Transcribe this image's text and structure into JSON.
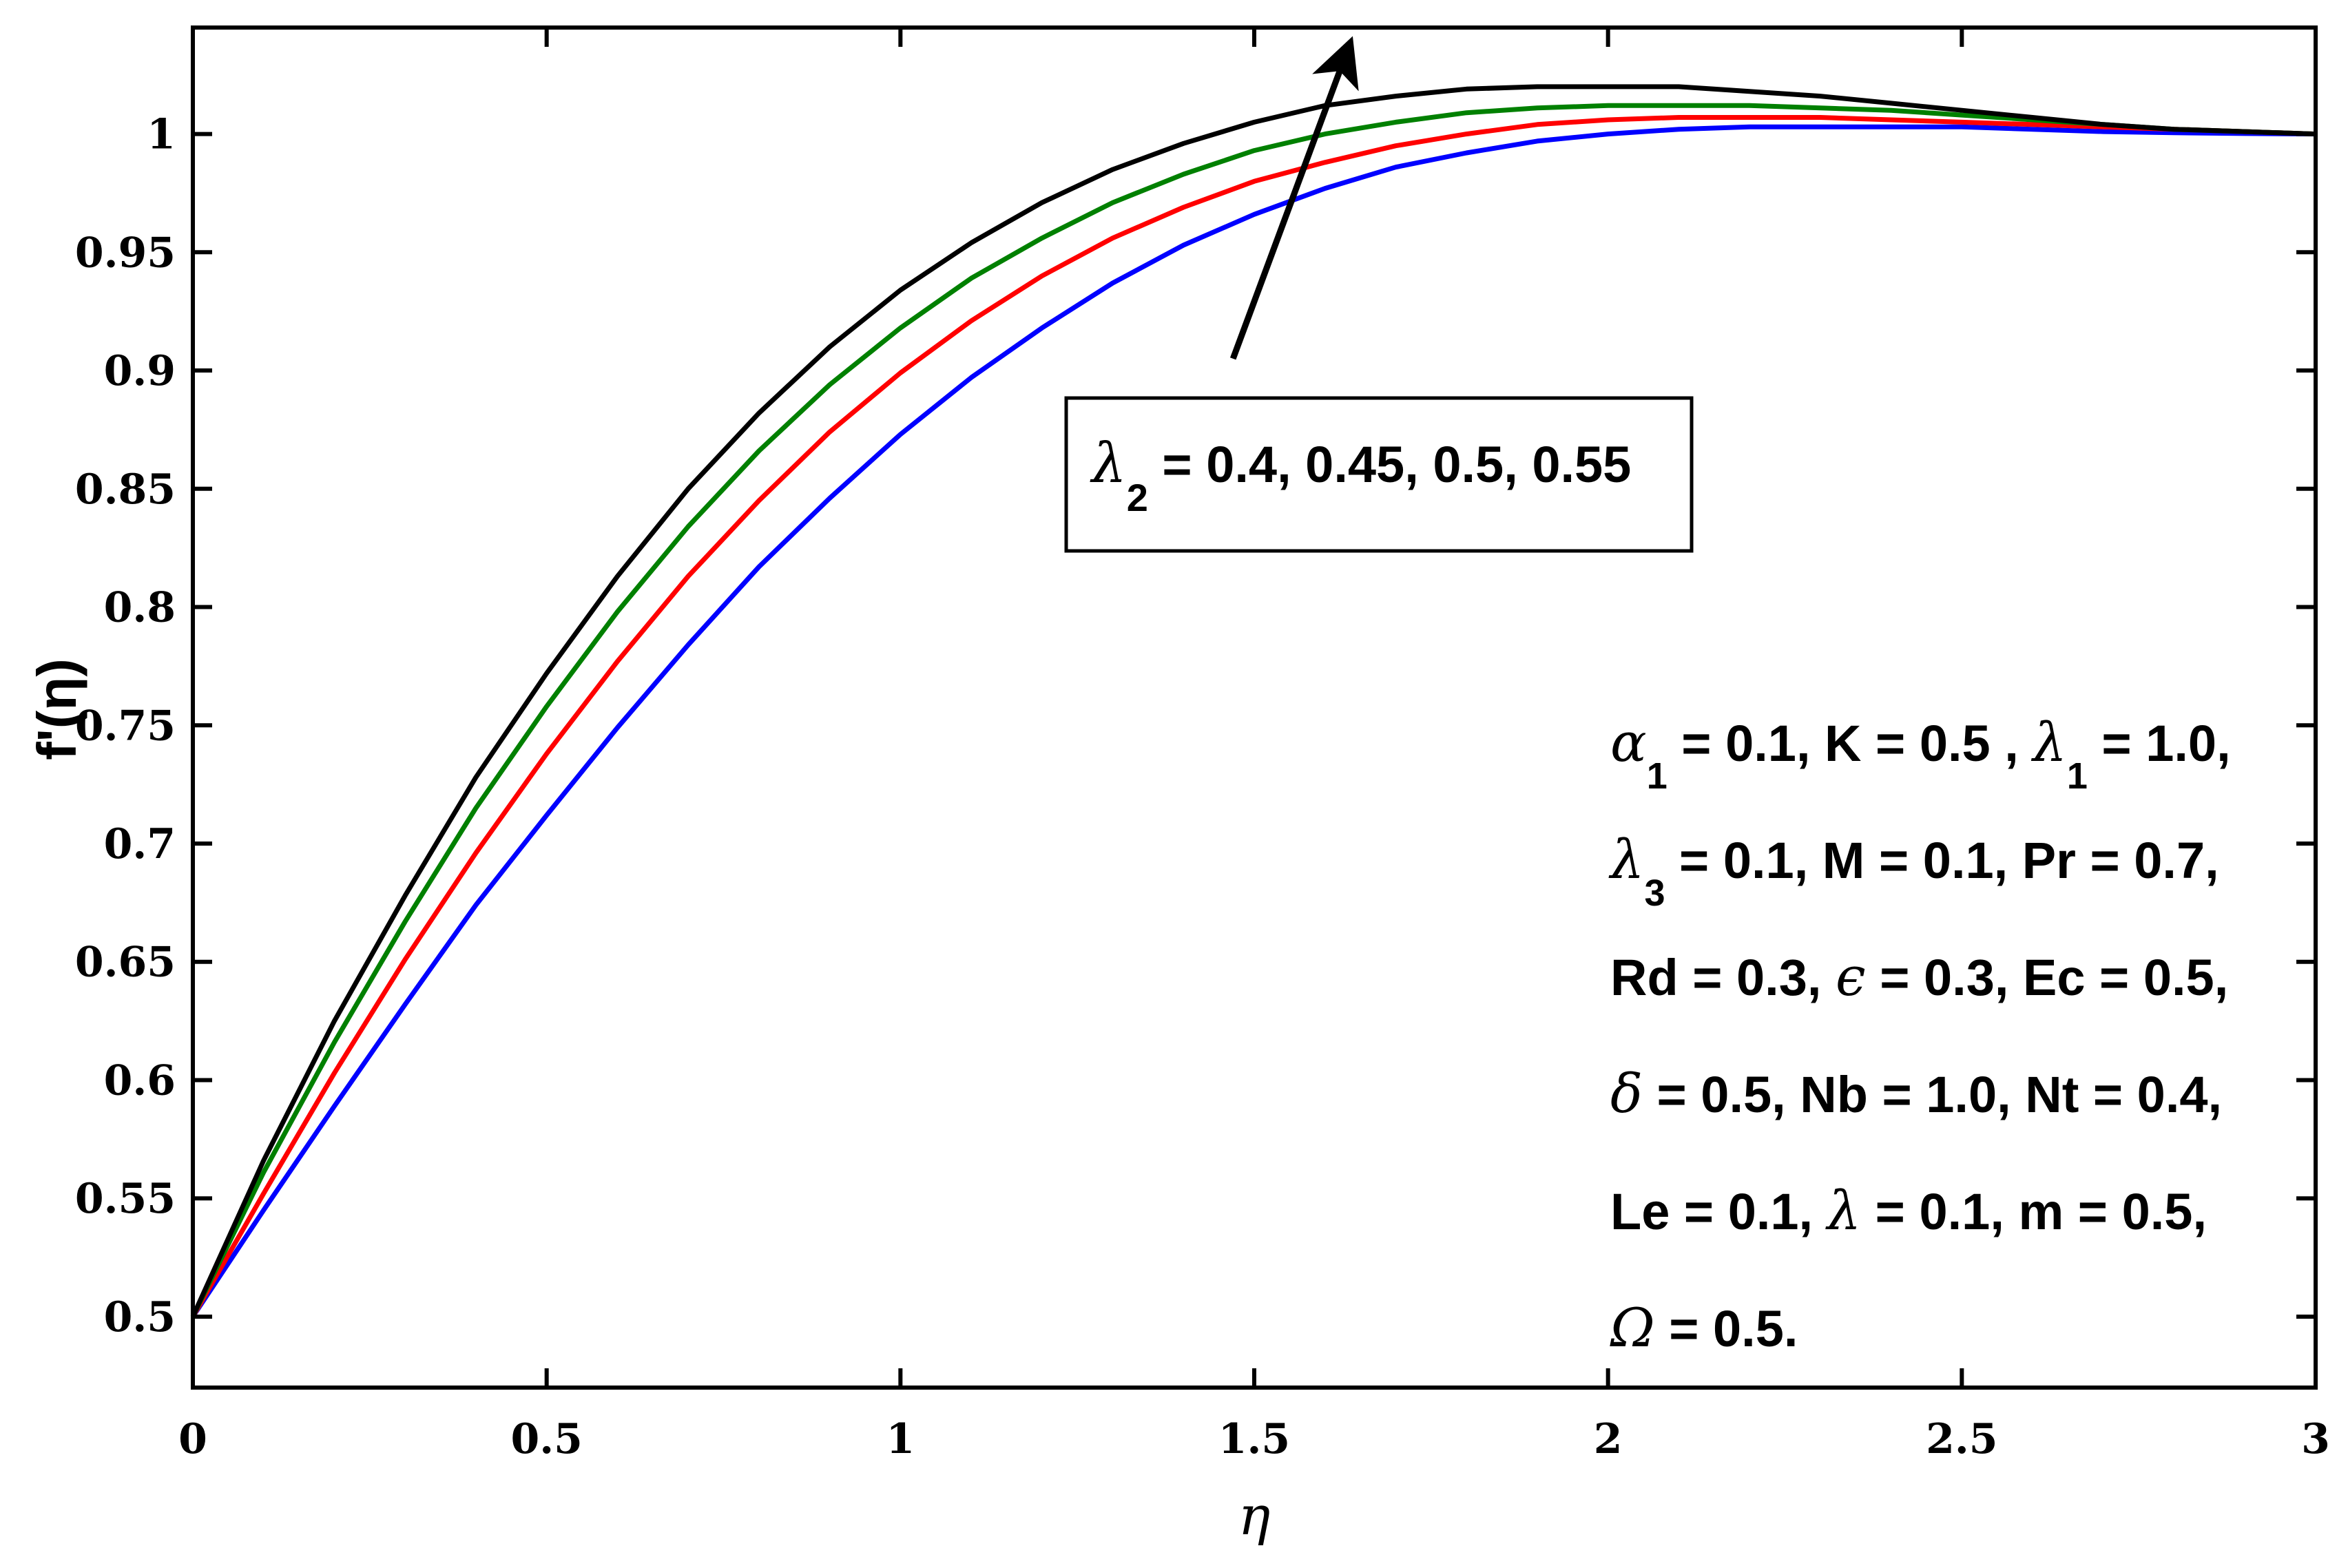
{
  "chart_data": {
    "type": "line",
    "xlabel": "η",
    "ylabel": "f'(η)",
    "xlim": [
      0,
      3
    ],
    "ylim": [
      0.47,
      1.045
    ],
    "x_ticks": [
      "0",
      "0.5",
      "1",
      "1.5",
      "2",
      "2.5",
      "3"
    ],
    "y_ticks": [
      "0.5",
      "0.55",
      "0.6",
      "0.65",
      "0.7",
      "0.75",
      "0.8",
      "0.85",
      "0.9",
      "0.95",
      "1"
    ],
    "grid": false,
    "x": [
      0,
      0.1,
      0.2,
      0.3,
      0.4,
      0.5,
      0.6,
      0.7,
      0.8,
      0.9,
      1.0,
      1.1,
      1.2,
      1.3,
      1.4,
      1.5,
      1.6,
      1.7,
      1.8,
      1.9,
      2.0,
      2.1,
      2.2,
      2.3,
      2.4,
      2.5,
      2.6,
      2.7,
      2.8,
      2.9,
      3.0
    ],
    "series": [
      {
        "color": "#0000ff",
        "values": [
          0.5,
          0.545,
          0.589,
          0.632,
          0.674,
          0.712,
          0.749,
          0.784,
          0.817,
          0.846,
          0.873,
          0.897,
          0.918,
          0.937,
          0.953,
          0.966,
          0.977,
          0.986,
          0.992,
          0.997,
          1.0,
          1.002,
          1.003,
          1.003,
          1.003,
          1.003,
          1.002,
          1.001,
          1.0005,
          1.0002,
          1.0
        ]
      },
      {
        "color": "#ff0000",
        "values": [
          0.5,
          0.552,
          0.603,
          0.651,
          0.696,
          0.738,
          0.777,
          0.813,
          0.845,
          0.874,
          0.899,
          0.921,
          0.94,
          0.956,
          0.969,
          0.98,
          0.988,
          0.995,
          1.0,
          1.004,
          1.006,
          1.007,
          1.007,
          1.007,
          1.006,
          1.005,
          1.004,
          1.003,
          1.002,
          1.001,
          1.0
        ]
      },
      {
        "color": "#008000",
        "values": [
          0.5,
          0.561,
          0.616,
          0.667,
          0.715,
          0.758,
          0.798,
          0.834,
          0.866,
          0.894,
          0.918,
          0.939,
          0.956,
          0.971,
          0.983,
          0.993,
          1.0,
          1.005,
          1.009,
          1.011,
          1.012,
          1.012,
          1.012,
          1.011,
          1.01,
          1.008,
          1.006,
          1.004,
          1.002,
          1.001,
          1.0
        ]
      },
      {
        "color": "#000000",
        "values": [
          0.5,
          0.566,
          0.625,
          0.678,
          0.728,
          0.772,
          0.813,
          0.85,
          0.882,
          0.91,
          0.934,
          0.954,
          0.971,
          0.985,
          0.996,
          1.005,
          1.012,
          1.016,
          1.019,
          1.02,
          1.02,
          1.02,
          1.018,
          1.016,
          1.013,
          1.01,
          1.007,
          1.004,
          1.002,
          1.001,
          1.0
        ]
      }
    ],
    "arrow": {
      "from": [
        1.47,
        0.905
      ],
      "to": [
        1.63,
        1.034
      ]
    },
    "annotation_box": {
      "prefix": "λ",
      "sub": "2",
      "rest": " = 0.4, 0.45, 0.5, 0.55"
    },
    "params_text": [
      [
        {
          "t": "α",
          "g": true
        },
        {
          "t": "1",
          "sub": true
        },
        {
          "t": " = 0.1, K = 0.5 , "
        },
        {
          "t": "λ",
          "g": true
        },
        {
          "t": "1",
          "sub": true
        },
        {
          "t": " = 1.0,"
        }
      ],
      [
        {
          "t": "λ",
          "g": true
        },
        {
          "t": "3",
          "sub": true
        },
        {
          "t": " = 0.1, M = 0.1, Pr = 0.7,"
        }
      ],
      [
        {
          "t": "Rd = 0.3, "
        },
        {
          "t": "ϵ",
          "g": true
        },
        {
          "t": " = 0.3, Ec = 0.5,"
        }
      ],
      [
        {
          "t": "δ",
          "g": true
        },
        {
          "t": " = 0.5, Nb = 1.0, Nt = 0.4,"
        }
      ],
      [
        {
          "t": "Le = 0.1, "
        },
        {
          "t": "λ",
          "g": true
        },
        {
          "t": " = 0.1, m = 0.5,"
        }
      ],
      [
        {
          "t": "Ω",
          "g": true
        },
        {
          "t": " = 0.5."
        }
      ]
    ]
  }
}
